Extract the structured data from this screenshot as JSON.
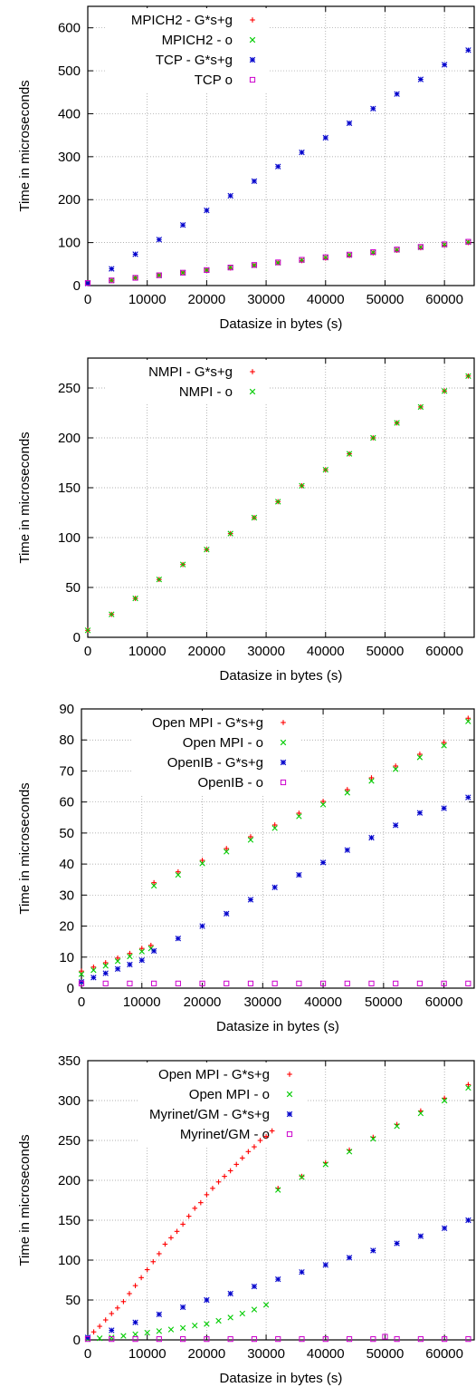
{
  "colors": {
    "series1": "#ff0000",
    "series2": "#00cc00",
    "series3": "#0000cc",
    "series4": "#cc00cc"
  },
  "chart_data": [
    {
      "type": "scatter",
      "xlabel": "Datasize in bytes (s)",
      "ylabel": "Time in microseconds",
      "xlim": [
        0,
        65000
      ],
      "ylim": [
        0,
        650
      ],
      "xticks": [
        "0",
        "10000",
        "20000",
        "30000",
        "40000",
        "50000",
        "60000"
      ],
      "yticks": [
        "0",
        "100",
        "200",
        "300",
        "400",
        "500",
        "600"
      ],
      "grid": true,
      "legend_position": "top-left",
      "series": [
        {
          "name": "MPICH2 - G*s+g",
          "marker": "plus",
          "color": "#ff0000",
          "x": [
            0,
            4000,
            8000,
            12000,
            16000,
            20000,
            24000,
            28000,
            32000,
            36000,
            40000,
            44000,
            48000,
            52000,
            56000,
            60000,
            64000
          ],
          "y": [
            6,
            12,
            18,
            24,
            30,
            36,
            41,
            47,
            53,
            58,
            64,
            70,
            76,
            82,
            88,
            94,
            100
          ]
        },
        {
          "name": "MPICH2 - o",
          "marker": "cross",
          "color": "#00cc00",
          "x": [
            0,
            4000,
            8000,
            12000,
            16000,
            20000,
            24000,
            28000,
            32000,
            36000,
            40000,
            44000,
            48000,
            52000,
            56000,
            60000,
            64000
          ],
          "y": [
            6,
            12,
            18,
            24,
            30,
            36,
            42,
            47,
            53,
            59,
            65,
            71,
            77,
            83,
            89,
            95,
            101
          ]
        },
        {
          "name": "TCP - G*s+g",
          "marker": "star",
          "color": "#0000cc",
          "x": [
            0,
            4000,
            8000,
            12000,
            16000,
            20000,
            24000,
            28000,
            32000,
            36000,
            40000,
            44000,
            48000,
            52000,
            56000,
            60000,
            64000
          ],
          "y": [
            5,
            39,
            73,
            107,
            141,
            175,
            209,
            243,
            277,
            310,
            344,
            378,
            412,
            446,
            480,
            514,
            548
          ]
        },
        {
          "name": "TCP o",
          "marker": "square",
          "color": "#cc00cc",
          "x": [
            0,
            4000,
            8000,
            12000,
            16000,
            20000,
            24000,
            28000,
            32000,
            36000,
            40000,
            44000,
            48000,
            52000,
            56000,
            60000,
            64000
          ],
          "y": [
            6,
            12,
            18,
            24,
            30,
            36,
            42,
            48,
            54,
            60,
            66,
            72,
            78,
            84,
            90,
            96,
            102
          ]
        }
      ]
    },
    {
      "type": "scatter",
      "xlabel": "Datasize in bytes (s)",
      "ylabel": "Time in microseconds",
      "xlim": [
        0,
        65000
      ],
      "ylim": [
        0,
        280
      ],
      "xticks": [
        "0",
        "10000",
        "20000",
        "30000",
        "40000",
        "50000",
        "60000"
      ],
      "yticks": [
        "0",
        "50",
        "100",
        "150",
        "200",
        "250"
      ],
      "grid": true,
      "legend_position": "top-left",
      "series": [
        {
          "name": "NMPI - G*s+g",
          "marker": "plus",
          "color": "#ff0000",
          "x": [
            0,
            4000,
            8000,
            12000,
            16000,
            20000,
            24000,
            28000,
            32000,
            36000,
            40000,
            44000,
            48000,
            52000,
            56000,
            60000,
            64000
          ],
          "y": [
            7,
            23,
            39,
            58,
            73,
            88,
            104,
            120,
            136,
            152,
            168,
            184,
            200,
            215,
            231,
            247,
            262
          ]
        },
        {
          "name": "NMPI - o",
          "marker": "cross",
          "color": "#00cc00",
          "x": [
            0,
            4000,
            8000,
            12000,
            16000,
            20000,
            24000,
            28000,
            32000,
            36000,
            40000,
            44000,
            48000,
            52000,
            56000,
            60000,
            64000
          ],
          "y": [
            7,
            23,
            39,
            58,
            73,
            88,
            104,
            120,
            136,
            152,
            168,
            184,
            200,
            215,
            231,
            247,
            262
          ]
        }
      ]
    },
    {
      "type": "scatter",
      "xlabel": "Datasize in bytes (s)",
      "ylabel": "Time in microseconds",
      "xlim": [
        0,
        65000
      ],
      "ylim": [
        0,
        90
      ],
      "xticks": [
        "0",
        "10000",
        "20000",
        "30000",
        "40000",
        "50000",
        "60000"
      ],
      "yticks": [
        "0",
        "10",
        "20",
        "30",
        "40",
        "50",
        "60",
        "70",
        "80",
        "90"
      ],
      "grid": true,
      "legend_position": "top-right",
      "series": [
        {
          "name": "Open MPI - G*s+g",
          "marker": "plus",
          "color": "#ff0000",
          "x": [
            0,
            2000,
            4000,
            6000,
            8000,
            10000,
            11500,
            12000,
            16000,
            20000,
            24000,
            28000,
            32000,
            36000,
            40000,
            44000,
            48000,
            52000,
            56000,
            60000,
            64000
          ],
          "y": [
            5.5,
            6.8,
            8.2,
            9.7,
            11.2,
            12.8,
            13.8,
            34,
            37.5,
            41.2,
            45,
            48.8,
            52.6,
            56.4,
            60.2,
            64,
            67.8,
            71.6,
            75.4,
            79.2,
            87
          ]
        },
        {
          "name": "Open MPI - o",
          "marker": "cross",
          "color": "#00cc00",
          "x": [
            0,
            2000,
            4000,
            6000,
            8000,
            10000,
            11500,
            12000,
            16000,
            20000,
            24000,
            28000,
            32000,
            36000,
            40000,
            44000,
            48000,
            52000,
            56000,
            60000,
            64000
          ],
          "y": [
            4.5,
            5.8,
            7.2,
            8.7,
            10.2,
            11.8,
            12.8,
            33,
            36.5,
            40.2,
            44,
            47.8,
            51.6,
            55.4,
            59.2,
            63,
            66.8,
            70.6,
            74.4,
            78.2,
            86
          ]
        },
        {
          "name": "OpenIB - G*s+g",
          "marker": "star",
          "color": "#0000cc",
          "x": [
            0,
            2000,
            4000,
            6000,
            8000,
            10000,
            12000,
            16000,
            20000,
            24000,
            28000,
            32000,
            36000,
            40000,
            44000,
            48000,
            52000,
            56000,
            60000,
            64000
          ],
          "y": [
            2,
            3.4,
            4.8,
            6.2,
            7.6,
            9,
            12,
            16,
            20,
            24,
            28.5,
            32.5,
            36.5,
            40.5,
            44.5,
            48.5,
            52.5,
            56.5,
            58,
            61.5
          ]
        },
        {
          "name": "OpenIB - o",
          "marker": "square",
          "color": "#cc00cc",
          "x": [
            0,
            4000,
            8000,
            12000,
            16000,
            20000,
            24000,
            28000,
            32000,
            36000,
            40000,
            44000,
            48000,
            52000,
            56000,
            60000,
            64000
          ],
          "y": [
            1.5,
            1.5,
            1.5,
            1.5,
            1.5,
            1.5,
            1.5,
            1.5,
            1.5,
            1.5,
            1.5,
            1.5,
            1.5,
            1.5,
            1.5,
            1.5,
            1.5
          ]
        }
      ]
    },
    {
      "type": "scatter",
      "xlabel": "Datasize in bytes (s)",
      "ylabel": "Time in microseconds",
      "xlim": [
        0,
        65000
      ],
      "ylim": [
        0,
        350
      ],
      "xticks": [
        "0",
        "10000",
        "20000",
        "30000",
        "40000",
        "50000",
        "60000"
      ],
      "yticks": [
        "0",
        "50",
        "100",
        "150",
        "200",
        "250",
        "300",
        "350"
      ],
      "grid": true,
      "legend_position": "top-right",
      "series": [
        {
          "name": "Open MPI - G*s+g",
          "marker": "plus",
          "color": "#ff0000",
          "x": [
            0,
            1000,
            2000,
            3000,
            4000,
            5000,
            6000,
            7000,
            8000,
            9000,
            10000,
            11000,
            12000,
            13000,
            14000,
            15000,
            16000,
            17000,
            18000,
            19000,
            20000,
            21000,
            22000,
            23000,
            24000,
            25000,
            26000,
            27000,
            28000,
            29000,
            30000,
            31000,
            32000,
            36000,
            40000,
            44000,
            48000,
            52000,
            56000,
            60000,
            64000
          ],
          "y": [
            3,
            10,
            17,
            25,
            33,
            40,
            48,
            58,
            68,
            78,
            88,
            98,
            108,
            120,
            128,
            136,
            145,
            155,
            165,
            172,
            182,
            190,
            198,
            205,
            212,
            220,
            228,
            236,
            242,
            250,
            255,
            262,
            190,
            205,
            222,
            238,
            254,
            270,
            287,
            303,
            320
          ]
        },
        {
          "name": "Open MPI - o",
          "marker": "cross",
          "color": "#00cc00",
          "x": [
            0,
            2000,
            4000,
            6000,
            8000,
            10000,
            12000,
            14000,
            16000,
            18000,
            20000,
            22000,
            24000,
            26000,
            28000,
            30000,
            32000,
            36000,
            40000,
            44000,
            48000,
            52000,
            56000,
            60000,
            64000
          ],
          "y": [
            1,
            2,
            3,
            5,
            7,
            9,
            11,
            13,
            15,
            18,
            20,
            24,
            28,
            33,
            38,
            44,
            188,
            204,
            220,
            236,
            252,
            268,
            284,
            300,
            316
          ]
        },
        {
          "name": "Myrinet/GM - G*s+g",
          "marker": "star",
          "color": "#0000cc",
          "x": [
            0,
            4000,
            8000,
            12000,
            16000,
            20000,
            24000,
            28000,
            32000,
            36000,
            40000,
            44000,
            48000,
            52000,
            56000,
            60000,
            64000
          ],
          "y": [
            3,
            12,
            22,
            32,
            41,
            50,
            58,
            67,
            76,
            85,
            94,
            103,
            112,
            121,
            130,
            140,
            150
          ]
        },
        {
          "name": "Myrinet/GM - o",
          "marker": "square",
          "color": "#cc00cc",
          "x": [
            0,
            4000,
            8000,
            12000,
            16000,
            20000,
            24000,
            28000,
            32000,
            36000,
            40000,
            44000,
            48000,
            50000,
            52000,
            56000,
            60000,
            64000
          ],
          "y": [
            1,
            1,
            1,
            1,
            1,
            1,
            1,
            1,
            1,
            1,
            1,
            1,
            1,
            4,
            1,
            1,
            1,
            1
          ]
        }
      ]
    }
  ]
}
